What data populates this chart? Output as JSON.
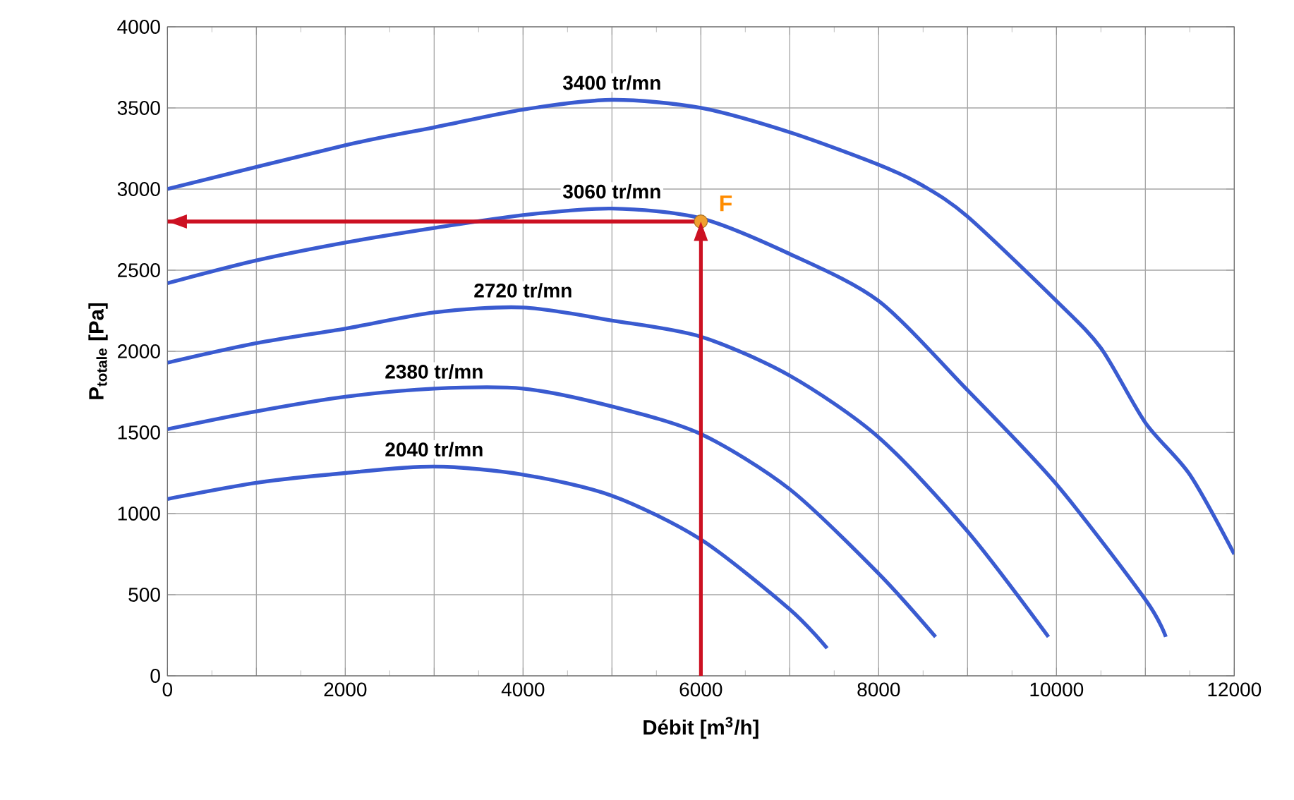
{
  "chart_data": {
    "type": "line",
    "xlabel": "Débit [m$^{3}$/h]",
    "ylabel": "P$_{totale}$ [Pa]",
    "xlim": [
      0,
      12000
    ],
    "ylim": [
      0,
      4000
    ],
    "xticks": [
      0,
      {
        "value": 1000,
        "label": null
      },
      2000,
      {
        "value": 3000,
        "label": null
      },
      4000,
      {
        "value": 5000,
        "label": null
      },
      6000,
      {
        "value": 7000,
        "label": null
      },
      8000,
      {
        "value": 9000,
        "label": null
      },
      10000,
      {
        "value": 11000,
        "label": null
      },
      12000
    ],
    "yticks": [
      0,
      500,
      1000,
      1500,
      2000,
      2500,
      3000,
      3500,
      4000
    ],
    "grid": true,
    "marker": "none",
    "series": [
      {
        "name": "3400 tr/mn",
        "color": "#3a5bd0",
        "x": [
          0,
          2000,
          3000,
          4000,
          5000,
          6000,
          7000,
          8000,
          8500,
          9000,
          10000,
          10500,
          11000,
          11500,
          12000
        ],
        "values": [
          3000,
          3270,
          3380,
          3490,
          3550,
          3500,
          3350,
          3150,
          3020,
          2830,
          2310,
          2020,
          1560,
          1240,
          750
        ]
      },
      {
        "name": "3060 tr/mn",
        "color": "#3a5bd0",
        "x": [
          0,
          1000,
          2000,
          3000,
          4000,
          5000,
          6000,
          7000,
          8000,
          9000,
          10000,
          11000,
          11230
        ],
        "values": [
          2420,
          2560,
          2670,
          2760,
          2840,
          2880,
          2820,
          2600,
          2310,
          1760,
          1180,
          470,
          240
        ]
      },
      {
        "name": "2720 tr/mn",
        "color": "#3a5bd0",
        "x": [
          0,
          1000,
          2000,
          3000,
          4000,
          5000,
          6000,
          7000,
          8000,
          9000,
          9910
        ],
        "values": [
          1930,
          2050,
          2140,
          2240,
          2270,
          2190,
          2090,
          1850,
          1470,
          890,
          240
        ]
      },
      {
        "name": "2380 tr/mn",
        "color": "#3a5bd0",
        "x": [
          0,
          1000,
          2000,
          3000,
          4000,
          5000,
          6000,
          7000,
          8000,
          8640
        ],
        "values": [
          1520,
          1630,
          1720,
          1770,
          1770,
          1660,
          1490,
          1150,
          630,
          240
        ]
      },
      {
        "name": "2040 tr/mn",
        "color": "#3a5bd0",
        "x": [
          0,
          1000,
          2000,
          3000,
          4000,
          5000,
          6000,
          7000,
          7420
        ],
        "values": [
          1090,
          1190,
          1250,
          1290,
          1240,
          1110,
          840,
          410,
          170
        ]
      },
      {
        "type": "line",
        "color": "#cc1122",
        "x": [
          6000,
          6000
        ],
        "values": [
          0,
          2800
        ]
      },
      {
        "type": "line",
        "color": "#cc1122",
        "x": [
          6000,
          0
        ],
        "values": [
          2800,
          2800
        ]
      },
      {
        "type": "scatter",
        "color": "#f0a030",
        "marker": "circle",
        "x": [
          6000
        ],
        "values": [
          2800
        ]
      }
    ],
    "annotations": [
      {
        "text": "F",
        "x": 6000,
        "y": 2800
      }
    ]
  }
}
